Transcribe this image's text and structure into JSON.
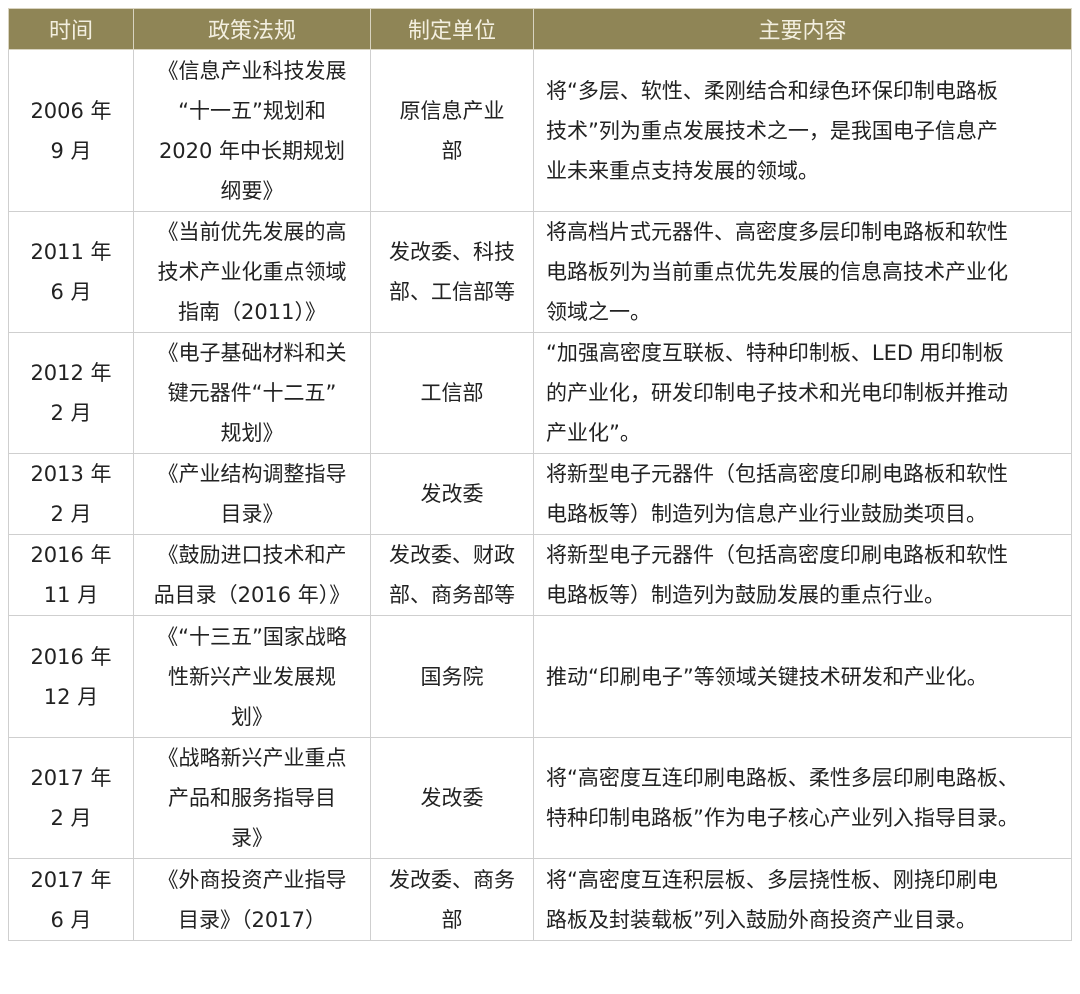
{
  "header_color": "#8f8556",
  "columns": [
    "时间",
    "政策法规",
    "制定单位",
    "主要内容"
  ],
  "rows": [
    {
      "time": "2006 年\n9 月",
      "policy": "《信息产业科技发展\n“十一五”规划和\n2020 年中长期规划\n纲要》",
      "unit": "原信息产业\n部",
      "content": "将“多层、软性、柔刚结合和绿色环保印制电路板\n技术”列为重点发展技术之一，是我国电子信息产\n业未来重点支持发展的领域。"
    },
    {
      "time": "2011 年\n6 月",
      "policy": "《当前优先发展的高\n技术产业化重点领域\n指南（2011）》",
      "unit": "发改委、科技\n部、工信部等",
      "content": "将高档片式元器件、高密度多层印制电路板和软性\n电路板列为当前重点优先发展的信息高技术产业化\n领域之一。"
    },
    {
      "time": "2012 年\n2 月",
      "policy": "《电子基础材料和关\n键元器件“十二五”\n规划》",
      "unit": "工信部",
      "content": "“加强高密度互联板、特种印制板、LED 用印制板\n的产业化，研发印制电子技术和光电印制板并推动\n产业化”。"
    },
    {
      "time": "2013 年\n2 月",
      "policy": "《产业结构调整指导\n目录》",
      "unit": "发改委",
      "content": "将新型电子元器件（包括高密度印刷电路板和软性\n电路板等）制造列为信息产业行业鼓励类项目。"
    },
    {
      "time": "2016 年\n11 月",
      "policy": "《鼓励进口技术和产\n品目录（2016 年）》",
      "unit": "发改委、财政\n部、商务部等",
      "content": "将新型电子元器件（包括高密度印刷电路板和软性\n电路板等）制造列为鼓励发展的重点行业。"
    },
    {
      "time": "2016 年\n12 月",
      "policy": "《“十三五”国家战略\n性新兴产业发展规\n划》",
      "unit": "国务院",
      "content": "推动“印刷电子”等领域关键技术研发和产业化。"
    },
    {
      "time": "2017 年\n2 月",
      "policy": "《战略新兴产业重点\n产品和服务指导目\n录》",
      "unit": "发改委",
      "content": "将“高密度互连印刷电路板、柔性多层印刷电路板、\n特种印制电路板”作为电子核心产业列入指导目录。"
    },
    {
      "time": "2017 年\n6 月",
      "policy": "《外商投资产业指导\n目录》（2017）",
      "unit": "发改委、商务\n部",
      "content": "将“高密度互连积层板、多层挠性板、刚挠印刷电\n路板及封装载板”列入鼓励外商投资产业目录。"
    }
  ]
}
